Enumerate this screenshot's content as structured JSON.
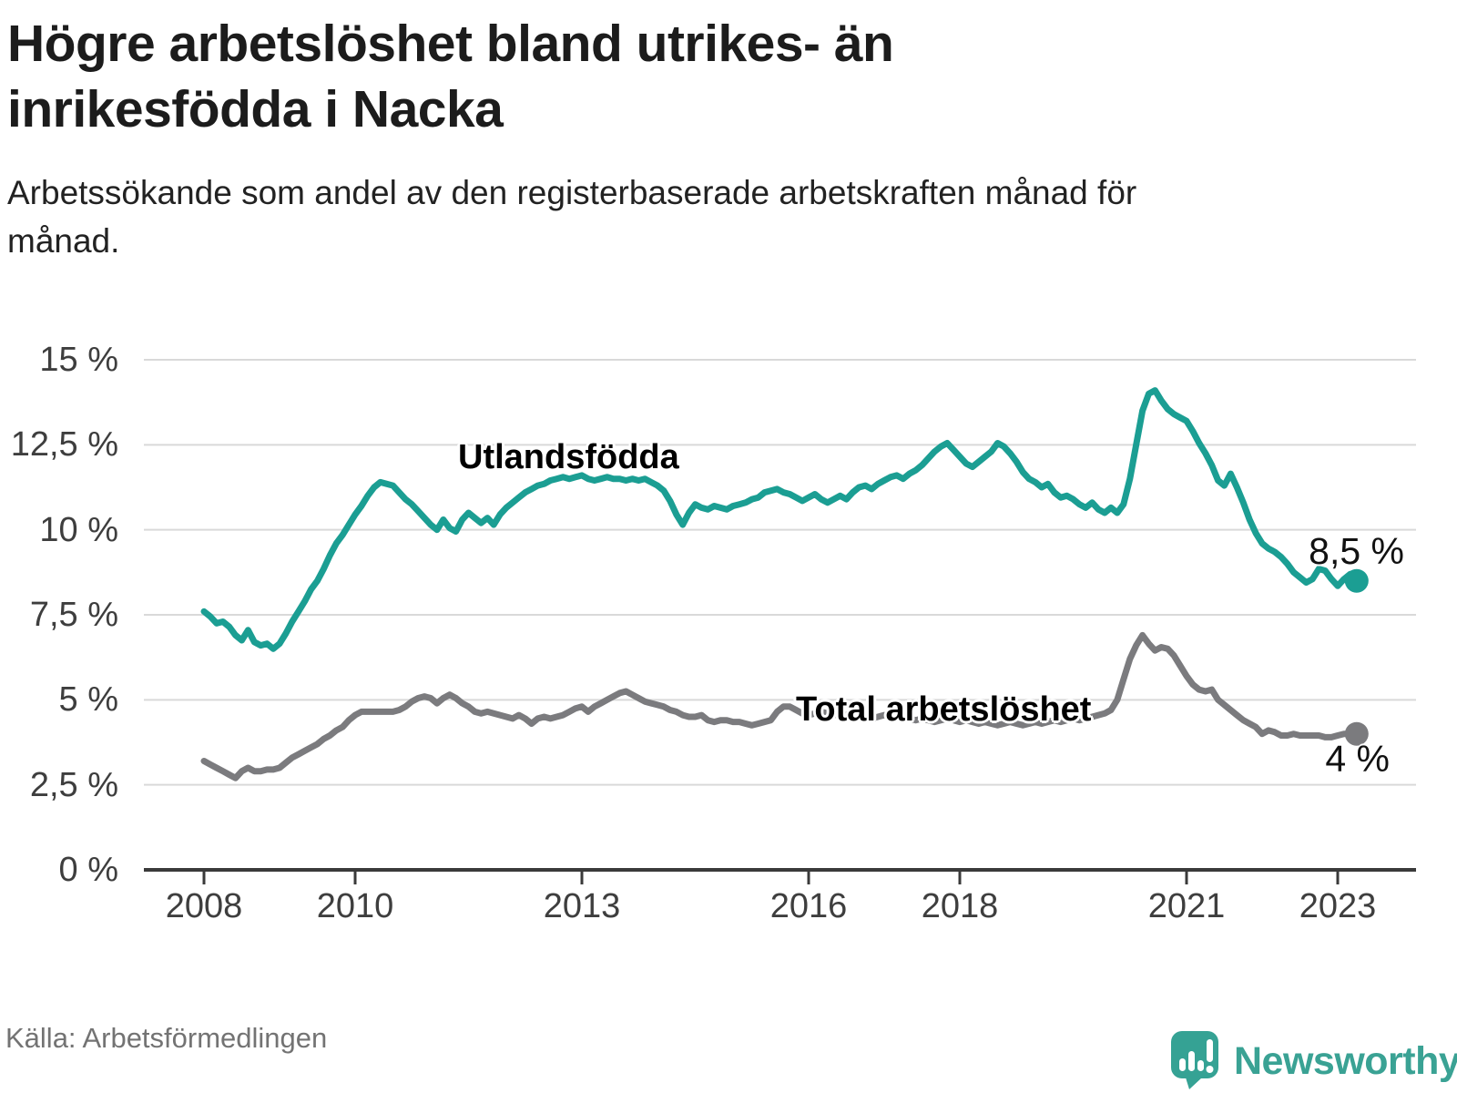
{
  "chart_data": {
    "type": "line",
    "title": "Högre arbetslöshet bland utrikes- än inrikesfödda i Nacka",
    "subtitle": "Arbetssökande som andel av den registerbaserade arbetskraften månad för månad.",
    "source": "Källa: Arbetsförmedlingen",
    "grid": "horizontal",
    "grid_color": "#d9d9d9",
    "axis_color": "#3a3a3a",
    "ylim": [
      0,
      15
    ],
    "xlim_years": [
      2007.2,
      2024.0
    ],
    "legend_position": "direct-labels-on-lines",
    "y_ticks": [
      {
        "value": 0,
        "label": "0 %"
      },
      {
        "value": 2.5,
        "label": "2,5 %"
      },
      {
        "value": 5,
        "label": "5 %"
      },
      {
        "value": 7.5,
        "label": "7,5 %"
      },
      {
        "value": 10,
        "label": "10 %"
      },
      {
        "value": 12.5,
        "label": "12,5 %"
      },
      {
        "value": 15,
        "label": "15 %"
      }
    ],
    "x_ticks": [
      {
        "value": 2008,
        "label": "2008"
      },
      {
        "value": 2010,
        "label": "2010"
      },
      {
        "value": 2013,
        "label": "2013"
      },
      {
        "value": 2016,
        "label": "2016"
      },
      {
        "value": 2018,
        "label": "2018"
      },
      {
        "value": 2021,
        "label": "2021"
      },
      {
        "value": 2023,
        "label": "2023"
      }
    ],
    "x_start_year": 2008.0,
    "x_step_months": 1,
    "series": [
      {
        "id": "utlandsfodda",
        "name": "Utlandsfödda",
        "color": "#1b9e93",
        "end_label": "8,5 %",
        "end_value": 8.5,
        "values": [
          7.6,
          7.45,
          7.25,
          7.3,
          7.15,
          6.9,
          6.75,
          7.05,
          6.7,
          6.6,
          6.65,
          6.5,
          6.65,
          6.95,
          7.3,
          7.6,
          7.9,
          8.25,
          8.5,
          8.85,
          9.25,
          9.6,
          9.85,
          10.15,
          10.45,
          10.7,
          11.0,
          11.25,
          11.4,
          11.35,
          11.3,
          11.1,
          10.9,
          10.75,
          10.55,
          10.35,
          10.15,
          10.0,
          10.3,
          10.05,
          9.95,
          10.3,
          10.5,
          10.35,
          10.2,
          10.35,
          10.15,
          10.45,
          10.65,
          10.8,
          10.95,
          11.1,
          11.2,
          11.3,
          11.35,
          11.45,
          11.5,
          11.55,
          11.5,
          11.55,
          11.6,
          11.5,
          11.45,
          11.5,
          11.55,
          11.5,
          11.5,
          11.45,
          11.5,
          11.45,
          11.5,
          11.4,
          11.3,
          11.15,
          10.85,
          10.45,
          10.15,
          10.5,
          10.75,
          10.65,
          10.6,
          10.7,
          10.65,
          10.6,
          10.7,
          10.75,
          10.8,
          10.9,
          10.95,
          11.1,
          11.15,
          11.2,
          11.1,
          11.05,
          10.95,
          10.85,
          10.95,
          11.05,
          10.9,
          10.8,
          10.9,
          11.0,
          10.9,
          11.1,
          11.25,
          11.3,
          11.2,
          11.35,
          11.45,
          11.55,
          11.6,
          11.5,
          11.65,
          11.75,
          11.9,
          12.1,
          12.3,
          12.45,
          12.55,
          12.35,
          12.15,
          11.95,
          11.85,
          12.0,
          12.15,
          12.3,
          12.55,
          12.45,
          12.25,
          12.0,
          11.7,
          11.5,
          11.4,
          11.25,
          11.35,
          11.1,
          10.95,
          11.0,
          10.9,
          10.75,
          10.65,
          10.8,
          10.6,
          10.5,
          10.65,
          10.5,
          10.75,
          11.5,
          12.5,
          13.5,
          14.0,
          14.1,
          13.8,
          13.55,
          13.4,
          13.3,
          13.2,
          12.9,
          12.55,
          12.25,
          11.9,
          11.45,
          11.3,
          11.65,
          11.25,
          10.8,
          10.3,
          9.9,
          9.6,
          9.45,
          9.35,
          9.2,
          9.0,
          8.75,
          8.6,
          8.45,
          8.55,
          8.85,
          8.8,
          8.55,
          8.35,
          8.55,
          8.7,
          8.5
        ]
      },
      {
        "id": "total",
        "name": "Total arbetslöshet",
        "color": "#7b7b7e",
        "end_label": "4 %",
        "end_value": 4.0,
        "values": [
          3.2,
          3.1,
          3.0,
          2.9,
          2.8,
          2.7,
          2.9,
          3.0,
          2.9,
          2.9,
          2.95,
          2.95,
          3.0,
          3.15,
          3.3,
          3.4,
          3.5,
          3.6,
          3.7,
          3.85,
          3.95,
          4.1,
          4.2,
          4.4,
          4.55,
          4.65,
          4.65,
          4.65,
          4.65,
          4.65,
          4.65,
          4.7,
          4.8,
          4.95,
          5.05,
          5.1,
          5.05,
          4.9,
          5.05,
          5.15,
          5.05,
          4.9,
          4.8,
          4.65,
          4.6,
          4.65,
          4.6,
          4.55,
          4.5,
          4.45,
          4.55,
          4.45,
          4.3,
          4.45,
          4.5,
          4.45,
          4.5,
          4.55,
          4.65,
          4.75,
          4.8,
          4.65,
          4.8,
          4.9,
          5.0,
          5.1,
          5.2,
          5.25,
          5.15,
          5.05,
          4.95,
          4.9,
          4.85,
          4.8,
          4.7,
          4.65,
          4.55,
          4.5,
          4.5,
          4.55,
          4.4,
          4.35,
          4.4,
          4.4,
          4.35,
          4.35,
          4.3,
          4.25,
          4.3,
          4.35,
          4.4,
          4.65,
          4.8,
          4.8,
          4.7,
          4.6,
          4.55,
          4.6,
          4.65,
          4.6,
          4.55,
          4.6,
          4.55,
          4.5,
          4.55,
          4.5,
          4.45,
          4.5,
          4.55,
          4.5,
          4.45,
          4.5,
          4.45,
          4.4,
          4.45,
          4.4,
          4.35,
          4.4,
          4.45,
          4.4,
          4.35,
          4.4,
          4.35,
          4.3,
          4.35,
          4.3,
          4.25,
          4.3,
          4.35,
          4.3,
          4.25,
          4.3,
          4.35,
          4.3,
          4.35,
          4.4,
          4.35,
          4.4,
          4.45,
          4.4,
          4.45,
          4.5,
          4.55,
          4.6,
          4.7,
          5.0,
          5.6,
          6.2,
          6.6,
          6.9,
          6.65,
          6.45,
          6.55,
          6.5,
          6.3,
          6.0,
          5.7,
          5.45,
          5.3,
          5.25,
          5.3,
          5.0,
          4.85,
          4.7,
          4.55,
          4.4,
          4.3,
          4.2,
          4.0,
          4.1,
          4.05,
          3.95,
          3.95,
          4.0,
          3.95,
          3.95,
          3.95,
          3.95,
          3.9,
          3.9,
          3.95,
          4.0,
          4.0,
          4.0
        ]
      }
    ]
  },
  "footer": {
    "brand": "Newsworthy"
  }
}
